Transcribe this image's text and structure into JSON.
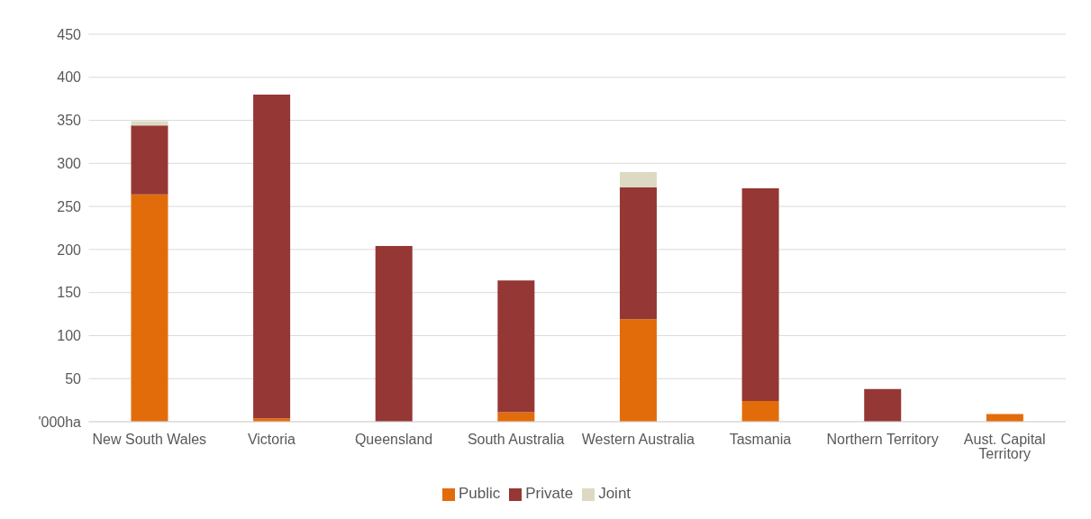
{
  "chart_data": {
    "type": "bar",
    "stacked": true,
    "categories": [
      "New South Wales",
      "Victoria",
      "Queensland",
      "South Australia",
      "Western Australia",
      "Tasmania",
      "Northern Territory",
      "Aust. Capital Territory"
    ],
    "series": [
      {
        "name": "Public",
        "color": "#e36c0a",
        "values": [
          264,
          4,
          0,
          11,
          119,
          24,
          0,
          9
        ]
      },
      {
        "name": "Private",
        "color": "#953735",
        "values": [
          80,
          376,
          204,
          153,
          153,
          247,
          38,
          0
        ]
      },
      {
        "name": "Joint",
        "color": "#ddd9c3",
        "values": [
          5,
          0,
          0,
          0,
          18,
          0,
          0,
          0
        ]
      }
    ],
    "ylim": [
      0,
      450
    ],
    "yticks": [
      {
        "value": 0,
        "label": "'000ha"
      },
      50,
      100,
      150,
      200,
      250,
      300,
      350,
      400,
      450
    ],
    "grid": "y",
    "legend": "bottom"
  }
}
